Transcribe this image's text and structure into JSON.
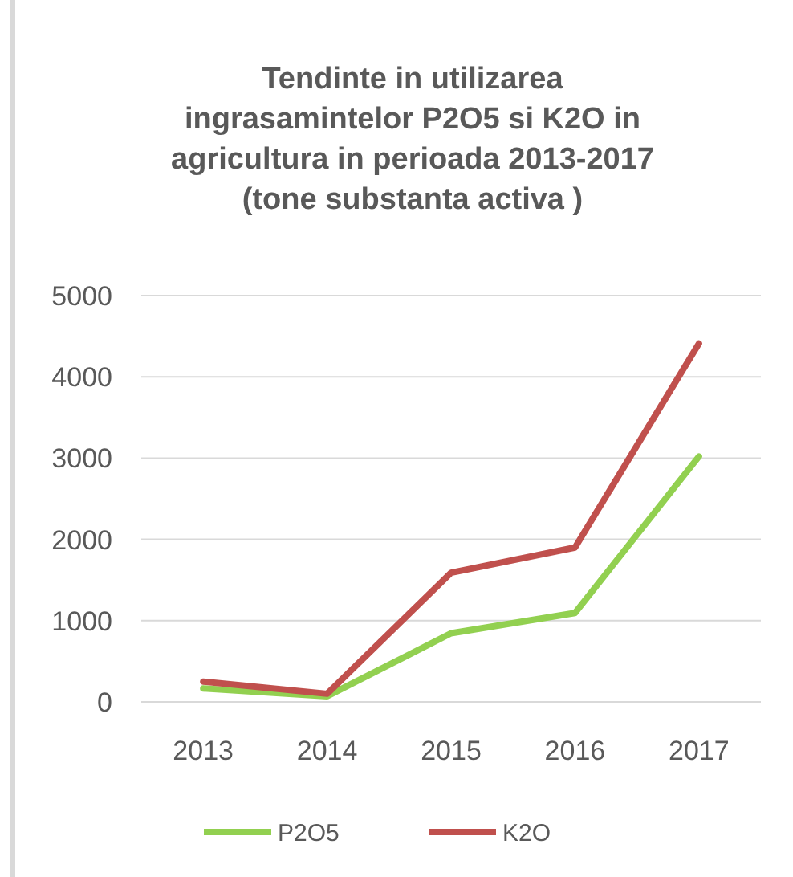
{
  "chart_data": {
    "type": "line",
    "title": "Tendinte in utilizarea ingrasamintelor  P2O5 si K2O in agricultura in perioada 2013-2017 (tone substanta activa )",
    "categories": [
      "2013",
      "2014",
      "2015",
      "2016",
      "2017"
    ],
    "series": [
      {
        "name": "P2O5",
        "color": "#92d050",
        "values": [
          165,
          70,
          845,
          1095,
          3020
        ]
      },
      {
        "name": "K2O",
        "color": "#c0504d",
        "values": [
          250,
          100,
          1590,
          1900,
          4410
        ]
      }
    ],
    "ylim": [
      0,
      5000
    ],
    "yticks": [
      0,
      1000,
      2000,
      3000,
      4000,
      5000
    ],
    "grid": "y",
    "legend": "bottom",
    "marker": "none",
    "line_style": "solid"
  }
}
